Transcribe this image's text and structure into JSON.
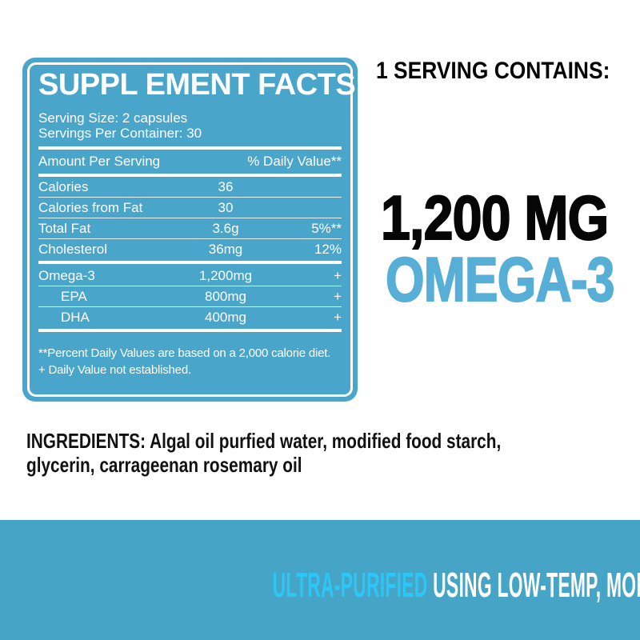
{
  "colors": {
    "panel_blue": "#4AA5CB",
    "banner_blue": "#46A4C6",
    "highlight_cyan": "#2EC6F5",
    "omega_blue": "#57AED6",
    "text_black": "#060606",
    "text_white": "#FFFFFF"
  },
  "panel": {
    "title": "SUPPL EMENT FACTS",
    "serving_size": "Serving Size: 2 capsules",
    "servings_per_container": "Servings Per Container: 30",
    "header": {
      "left": "Amount Per Serving",
      "right": "% Daily Value**"
    },
    "rows": [
      {
        "label": "Calories",
        "amount": "36",
        "dv": ""
      },
      {
        "label": "Calories from Fat",
        "amount": "30",
        "dv": ""
      },
      {
        "label": "Total Fat",
        "amount": "3.6g",
        "dv": "5%**"
      },
      {
        "label": "Cholesterol",
        "amount": "36mg",
        "dv": "12%"
      },
      {
        "label": "Omega-3",
        "amount": "1,200mg",
        "dv": "+"
      },
      {
        "label": "EPA",
        "amount": "800mg",
        "dv": "+"
      },
      {
        "label": "DHA",
        "amount": "400mg",
        "dv": "+"
      }
    ],
    "footnotes": [
      "**Percent Daily Values are based on a 2,000 calorie diet.",
      "+ Daily Value not established."
    ]
  },
  "headline": {
    "serving_contains": "1 SERVING CONTAINS:",
    "amount": "1,200 MG",
    "substance": "OMEGA-3"
  },
  "ingredients": {
    "lines": [
      "INGREDIENTS: Algal oil purfied water, modified food starch,",
      "glycerin, carrageenan rosemary oil"
    ]
  },
  "banner": {
    "highlight": "ULTRA-PURIFIED",
    "rest": " USING LOW-TEMP, MOLECULAR DISTILLAT ION"
  }
}
